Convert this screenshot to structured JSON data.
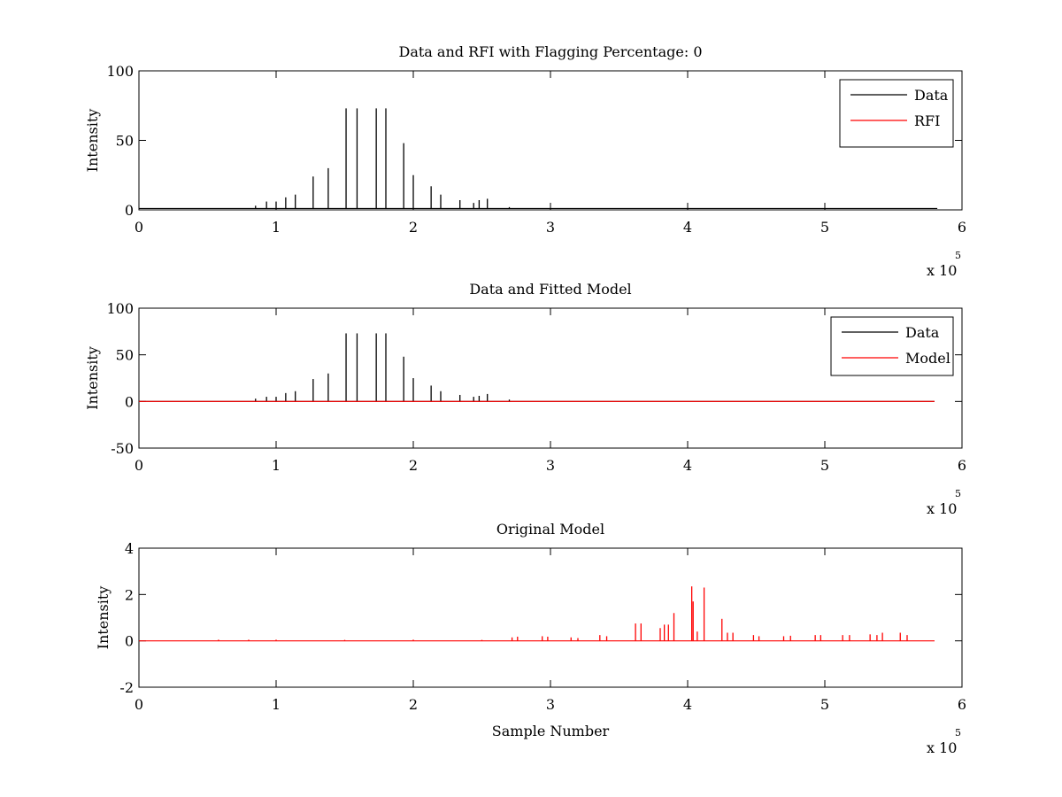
{
  "chart_data": [
    {
      "type": "line",
      "title": "Data and RFI with Flagging Percentage: 0",
      "xlabel": "",
      "ylabel": "Intensity",
      "xlim": [
        0,
        6
      ],
      "ylim": [
        0,
        100
      ],
      "x_multiplier": "x 10",
      "x_multiplier_exp": "5",
      "xticks": [
        0,
        1,
        2,
        3,
        4,
        5,
        6
      ],
      "xtick_labels": [
        "0",
        "1",
        "2",
        "3",
        "4",
        "5",
        "6"
      ],
      "yticks": [
        0,
        50,
        100
      ],
      "ytick_labels": [
        "0",
        "50",
        "100"
      ],
      "legend": {
        "placement": "top-right"
      },
      "series": [
        {
          "name": "Data",
          "color": "#000000",
          "x": [
            0.85,
            0.93,
            1.0,
            1.07,
            1.14,
            1.27,
            1.38,
            1.51,
            1.59,
            1.73,
            1.8,
            1.93,
            2.0,
            2.13,
            2.2,
            2.34,
            2.44,
            2.48,
            2.54,
            2.7
          ],
          "values": [
            3,
            6,
            6,
            9,
            11,
            24,
            30,
            73,
            73,
            73,
            73,
            48,
            25,
            17,
            11,
            7,
            5,
            7,
            8,
            2
          ],
          "baseline": 1
        },
        {
          "name": "RFI",
          "color": "#ff0000",
          "x": [],
          "values": []
        }
      ]
    },
    {
      "type": "line",
      "title": "Data and Fitted Model",
      "xlabel": "",
      "ylabel": "Intensity",
      "xlim": [
        0,
        6
      ],
      "ylim": [
        -50,
        100
      ],
      "x_multiplier": "x 10",
      "x_multiplier_exp": "5",
      "xticks": [
        0,
        1,
        2,
        3,
        4,
        5,
        6
      ],
      "xtick_labels": [
        "0",
        "1",
        "2",
        "3",
        "4",
        "5",
        "6"
      ],
      "yticks": [
        -50,
        0,
        50,
        100
      ],
      "ytick_labels": [
        "-50",
        "0",
        "50",
        "100"
      ],
      "legend": {
        "placement": "top-right"
      },
      "series": [
        {
          "name": "Data",
          "color": "#000000",
          "x": [
            0.85,
            0.93,
            1.0,
            1.07,
            1.14,
            1.27,
            1.38,
            1.51,
            1.59,
            1.73,
            1.8,
            1.93,
            2.0,
            2.13,
            2.2,
            2.34,
            2.44,
            2.48,
            2.54,
            2.7
          ],
          "values": [
            3,
            5,
            5,
            9,
            11,
            24,
            30,
            73,
            73,
            73,
            73,
            48,
            25,
            17,
            11,
            7,
            5,
            6,
            8,
            2
          ],
          "baseline": 0
        },
        {
          "name": "Model",
          "color": "#ff0000",
          "x": [
            0,
            5.8
          ],
          "values": [
            0,
            0
          ]
        }
      ]
    },
    {
      "type": "line",
      "title": "Original Model",
      "xlabel": "Sample Number",
      "ylabel": "Intensity",
      "xlim": [
        0,
        6
      ],
      "ylim": [
        -2,
        4
      ],
      "x_multiplier": "x 10",
      "x_multiplier_exp": "5",
      "xticks": [
        0,
        1,
        2,
        3,
        4,
        5,
        6
      ],
      "xtick_labels": [
        "0",
        "1",
        "2",
        "3",
        "4",
        "5",
        "6"
      ],
      "yticks": [
        -2,
        0,
        2,
        4
      ],
      "ytick_labels": [
        "-2",
        "0",
        "2",
        "4"
      ],
      "series": [
        {
          "name": "",
          "color": "#ff0000",
          "x": [
            0.58,
            0.8,
            1.0,
            1.5,
            2.0,
            2.5,
            2.72,
            2.76,
            2.94,
            2.98,
            3.15,
            3.2,
            3.36,
            3.41,
            3.62,
            3.66,
            3.8,
            3.83,
            3.86,
            3.9,
            4.03,
            4.04,
            4.07,
            4.12,
            4.25,
            4.29,
            4.33,
            4.48,
            4.52,
            4.7,
            4.75,
            4.93,
            4.97,
            5.13,
            5.18,
            5.33,
            5.38,
            5.42,
            5.55,
            5.6
          ],
          "values": [
            0.05,
            0.05,
            0.05,
            0.04,
            0.05,
            0.04,
            0.15,
            0.18,
            0.2,
            0.18,
            0.15,
            0.12,
            0.25,
            0.2,
            0.75,
            0.75,
            0.55,
            0.7,
            0.7,
            1.2,
            2.35,
            1.7,
            0.4,
            2.3,
            0.95,
            0.35,
            0.35,
            0.25,
            0.2,
            0.2,
            0.22,
            0.25,
            0.25,
            0.25,
            0.25,
            0.28,
            0.25,
            0.35,
            0.35,
            0.25
          ],
          "baseline": 0
        }
      ]
    }
  ]
}
